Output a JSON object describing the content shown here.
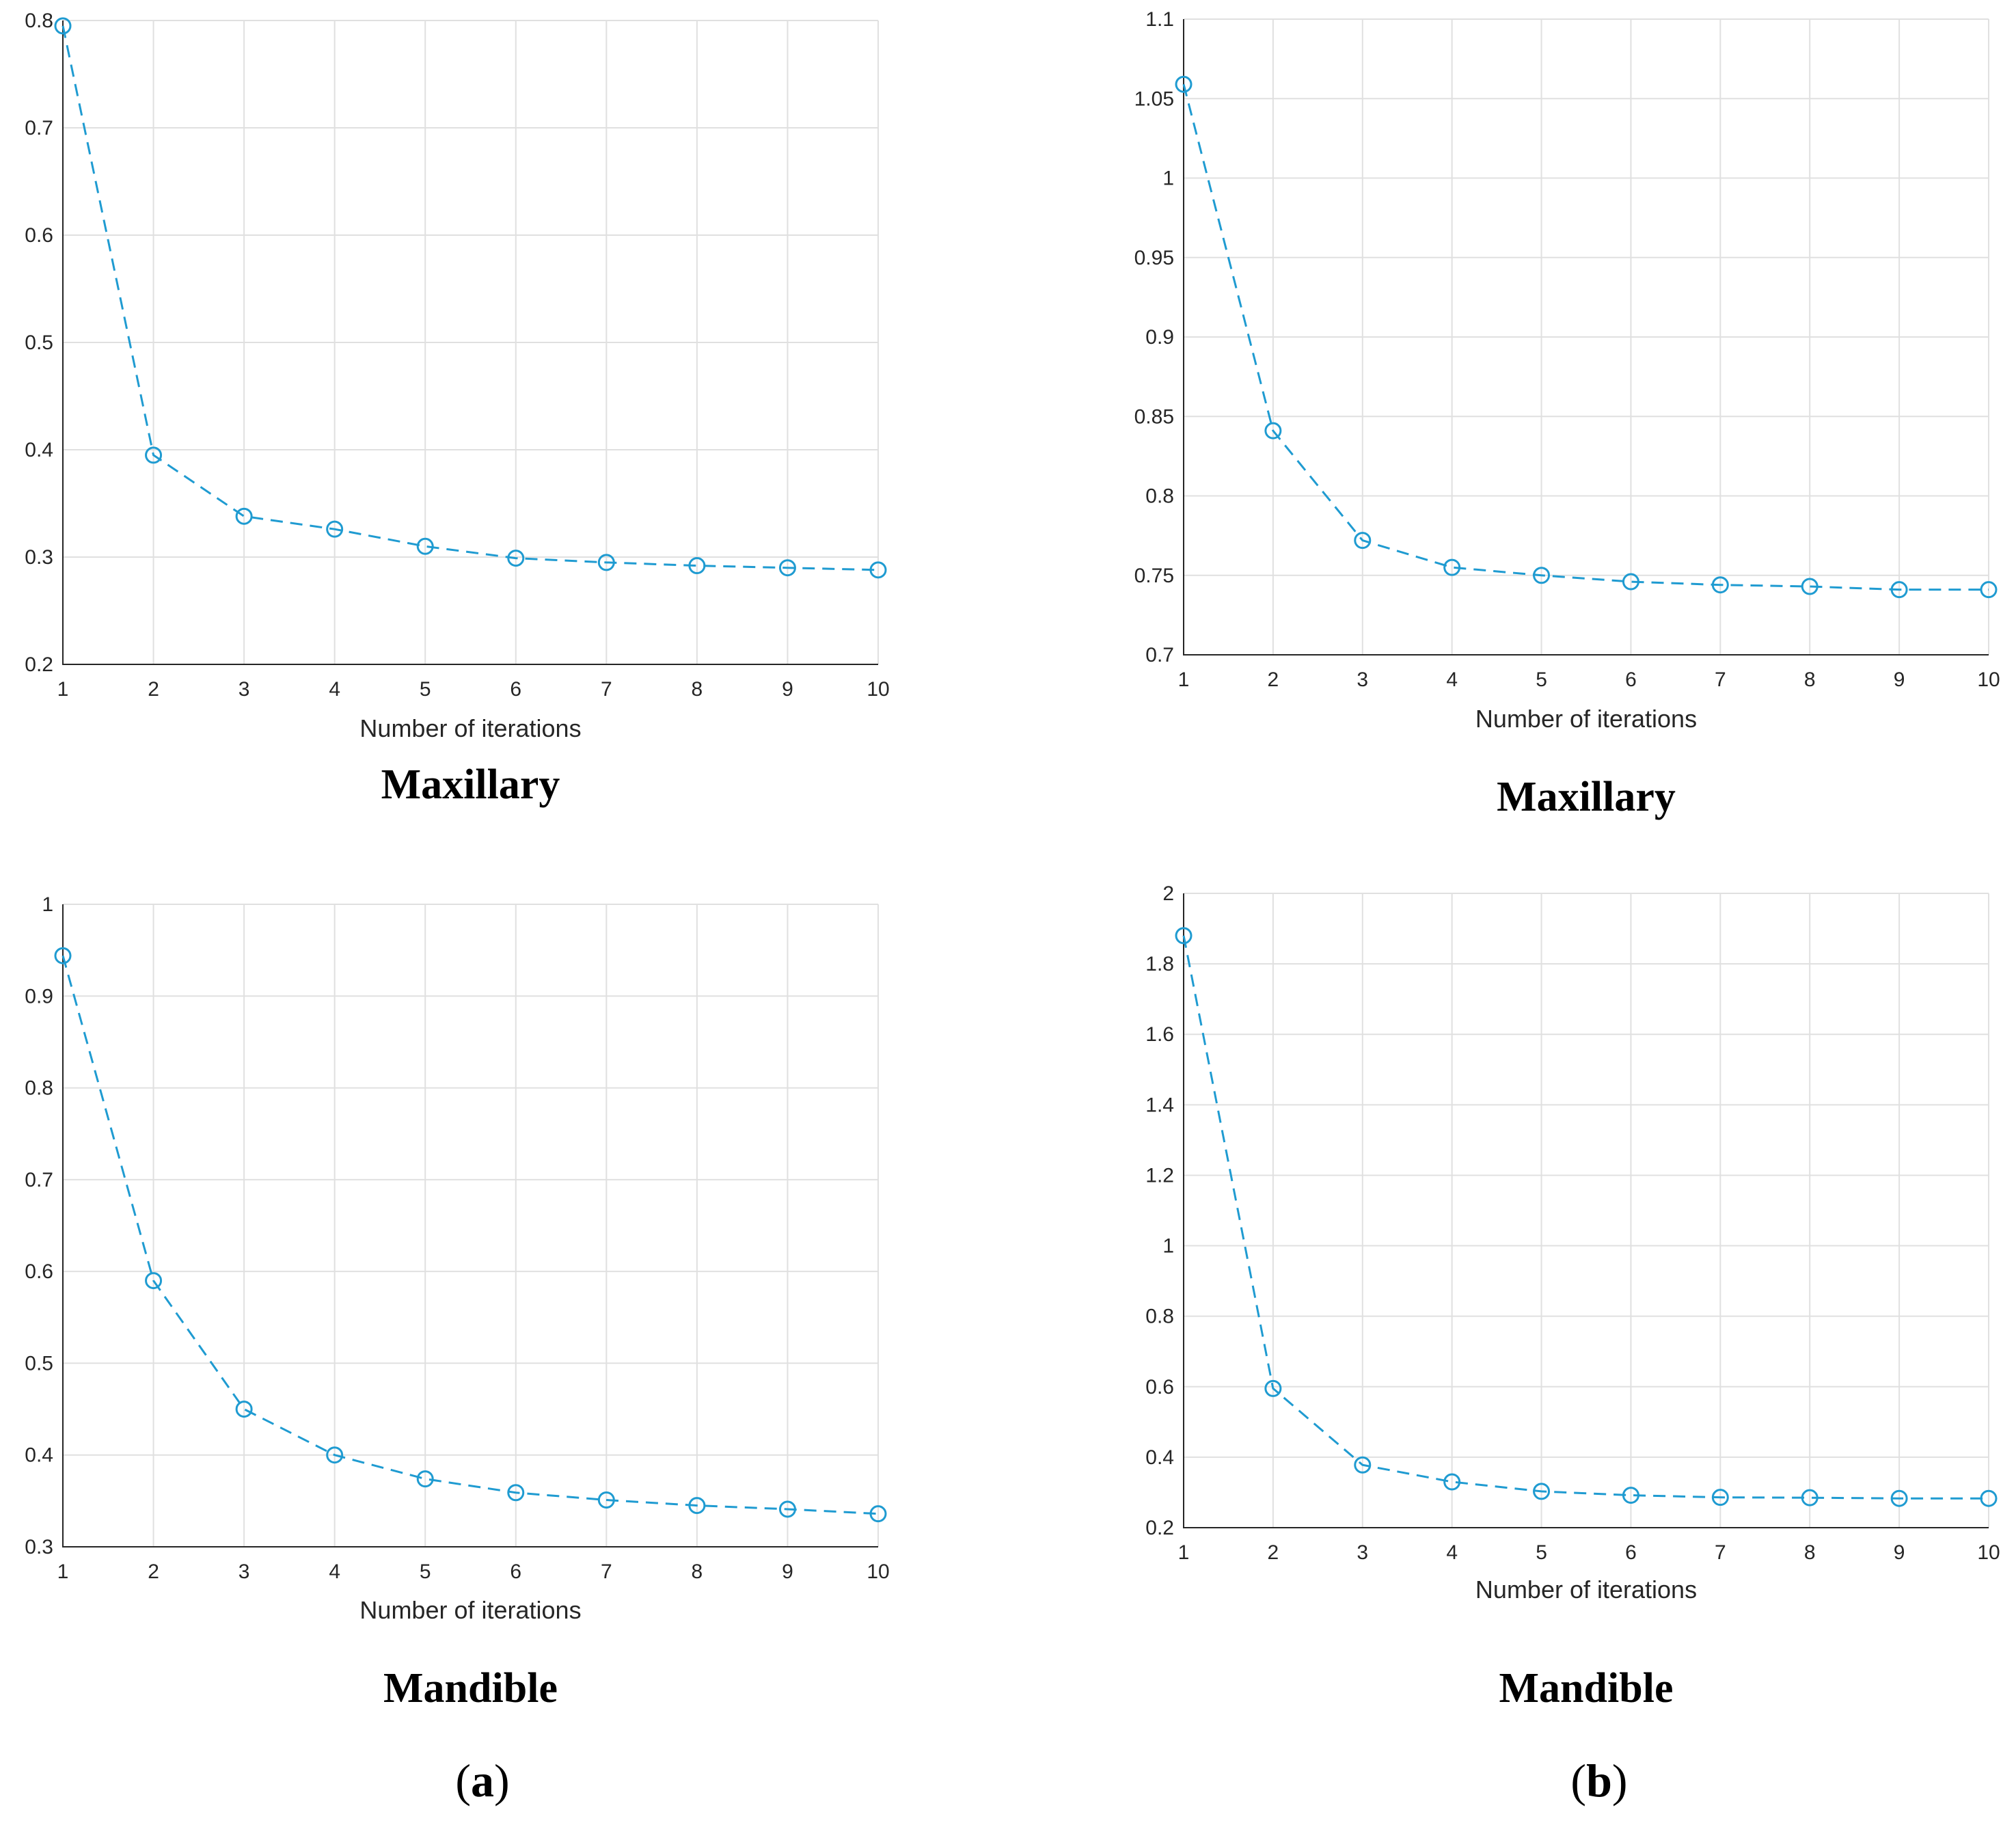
{
  "chart_data": [
    {
      "type": "line",
      "panel": "a",
      "caption": "Maxillary",
      "xlabel": "Number of iterations",
      "ylabel": "",
      "x": [
        1,
        2,
        3,
        4,
        5,
        6,
        7,
        8,
        9,
        10
      ],
      "values": [
        0.795,
        0.395,
        0.338,
        0.326,
        0.31,
        0.299,
        0.295,
        0.292,
        0.29,
        0.288
      ],
      "xlim": [
        1,
        10
      ],
      "ylim": [
        0.2,
        0.8
      ],
      "yticks": [
        0.2,
        0.3,
        0.4,
        0.5,
        0.6,
        0.7,
        0.8
      ],
      "ytick_labels": [
        "0.2",
        "0.3",
        "0.4",
        "0.5",
        "0.6",
        "0.7",
        "0.8"
      ],
      "grid": true
    },
    {
      "type": "line",
      "panel": "b",
      "caption": "Maxillary",
      "xlabel": "Number of iterations",
      "ylabel": "",
      "x": [
        1,
        2,
        3,
        4,
        5,
        6,
        7,
        8,
        9,
        10
      ],
      "values": [
        1.059,
        0.841,
        0.772,
        0.755,
        0.75,
        0.746,
        0.744,
        0.743,
        0.741,
        0.741
      ],
      "xlim": [
        1,
        10
      ],
      "ylim": [
        0.7,
        1.1
      ],
      "yticks": [
        0.7,
        0.75,
        0.8,
        0.85,
        0.9,
        0.95,
        1.0,
        1.05,
        1.1
      ],
      "ytick_labels": [
        "0.7",
        "0.75",
        "0.8",
        "0.85",
        "0.9",
        "0.95",
        "1",
        "1.05",
        "1.1"
      ],
      "grid": true
    },
    {
      "type": "line",
      "panel": "a",
      "caption": "Mandible",
      "xlabel": "Number of iterations",
      "ylabel": "",
      "x": [
        1,
        2,
        3,
        4,
        5,
        6,
        7,
        8,
        9,
        10
      ],
      "values": [
        0.944,
        0.59,
        0.45,
        0.4,
        0.374,
        0.359,
        0.351,
        0.345,
        0.341,
        0.336
      ],
      "xlim": [
        1,
        10
      ],
      "ylim": [
        0.3,
        1.0
      ],
      "yticks": [
        0.3,
        0.4,
        0.5,
        0.6,
        0.7,
        0.8,
        0.9,
        1.0
      ],
      "ytick_labels": [
        "0.3",
        "0.4",
        "0.5",
        "0.6",
        "0.7",
        "0.8",
        "0.9",
        "1"
      ],
      "grid": true
    },
    {
      "type": "line",
      "panel": "b",
      "caption": "Mandible",
      "xlabel": "Number of iterations",
      "ylabel": "",
      "x": [
        1,
        2,
        3,
        4,
        5,
        6,
        7,
        8,
        9,
        10
      ],
      "values": [
        1.88,
        0.595,
        0.378,
        0.33,
        0.303,
        0.292,
        0.286,
        0.285,
        0.283,
        0.283
      ],
      "xlim": [
        1,
        10
      ],
      "ylim": [
        0.2,
        2.0
      ],
      "yticks": [
        0.2,
        0.4,
        0.6,
        0.8,
        1.0,
        1.2,
        1.4,
        1.6,
        1.8,
        2.0
      ],
      "ytick_labels": [
        "0.2",
        "0.4",
        "0.6",
        "0.8",
        "1",
        "1.2",
        "1.4",
        "1.6",
        "1.8",
        "2"
      ],
      "grid": true
    }
  ],
  "panel_labels": {
    "a": {
      "open": "(",
      "letter": "a",
      "close": ")"
    },
    "b": {
      "open": "(",
      "letter": "b",
      "close": ")"
    }
  },
  "style": {
    "series_color": "#1f9bd1",
    "grid_color": "#e0e0e0",
    "axis_color": "#262626",
    "marker": "circle",
    "line_style": "dashed"
  }
}
